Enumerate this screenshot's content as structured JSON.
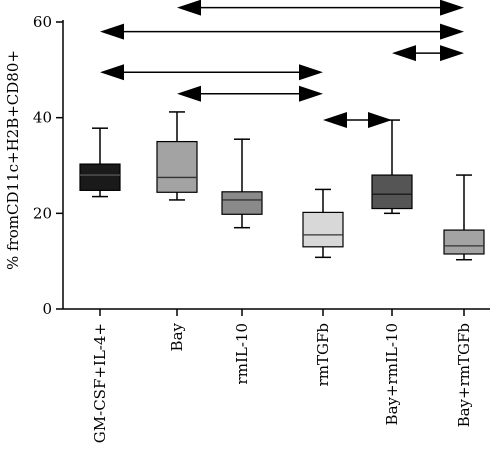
{
  "chart_data": {
    "type": "box",
    "title": "",
    "xlabel": "",
    "ylabel": "% fromCD11c+H2B+CD80+",
    "ylim": [
      0,
      60
    ],
    "yticks": [
      0,
      20,
      40,
      60
    ],
    "grid": false,
    "categories": [
      "GM-CSF+IL-4+",
      "Bay",
      "rmIL-10",
      "rmTGFb",
      "Bay+rmIL-10",
      "Bay+rmTGFb"
    ],
    "boxes": [
      {
        "min": 23.5,
        "q1": 24.8,
        "median": 28.0,
        "q3": 30.3,
        "max": 37.8,
        "color": "#1a1a1a",
        "median_color": "#555555"
      },
      {
        "min": 22.8,
        "q1": 24.4,
        "median": 27.5,
        "q3": 35.0,
        "max": 41.2,
        "color": "#a3a3a3",
        "median_color": "#333333"
      },
      {
        "min": 17.0,
        "q1": 19.8,
        "median": 22.8,
        "q3": 24.5,
        "max": 35.5,
        "color": "#8a8a8a",
        "median_color": "#333333"
      },
      {
        "min": 10.8,
        "q1": 13.0,
        "median": 15.5,
        "q3": 20.2,
        "max": 25.0,
        "color": "#d8d8d8",
        "median_color": "#333333"
      },
      {
        "min": 20.0,
        "q1": 21.0,
        "median": 24.0,
        "q3": 28.0,
        "max": 39.5,
        "color": "#555555",
        "median_color": "#1a1a1a"
      },
      {
        "min": 10.3,
        "q1": 11.5,
        "median": 13.2,
        "q3": 16.5,
        "max": 28.0,
        "color": "#a3a3a3",
        "median_color": "#333333"
      }
    ],
    "comparisons": [
      {
        "from": 1,
        "to": 5,
        "y": 63.0
      },
      {
        "from": 0,
        "to": 5,
        "y": 58.0
      },
      {
        "from": 4,
        "to": 5,
        "y": 53.5
      },
      {
        "from": 0,
        "to": 3,
        "y": 49.5
      },
      {
        "from": 1,
        "to": 3,
        "y": 45.0
      },
      {
        "from": 3,
        "to": 4,
        "y": 39.5
      }
    ]
  }
}
